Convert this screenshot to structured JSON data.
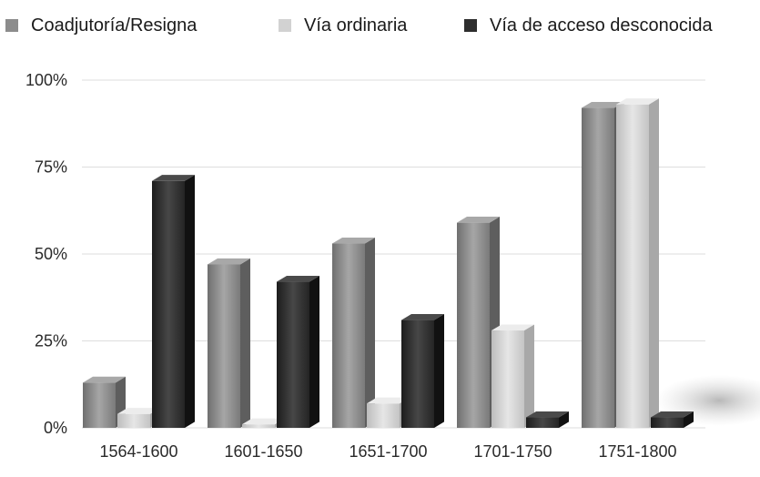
{
  "chart_data": {
    "type": "bar",
    "title": "",
    "xlabel": "",
    "ylabel": "",
    "categories": [
      "1564-1600",
      "1601-1650",
      "1651-1700",
      "1701-1750",
      "1751-1800"
    ],
    "series": [
      {
        "name": "Coadjutoría/Resigna",
        "color": "#8c8c8c",
        "values": [
          13,
          47,
          53,
          59,
          92
        ]
      },
      {
        "name": "Vía ordinaria",
        "color": "#d2d2d2",
        "values": [
          4,
          1,
          7,
          28,
          93
        ]
      },
      {
        "name": "Vía de acceso desconocida",
        "color": "#2e2e2e",
        "values": [
          71,
          42,
          31,
          3,
          3
        ]
      }
    ],
    "ylim": [
      0,
      100
    ],
    "yticks": [
      {
        "value": 0,
        "label": "0%"
      },
      {
        "value": 25,
        "label": "25%"
      },
      {
        "value": 50,
        "label": "50%"
      },
      {
        "value": 75,
        "label": "75%"
      },
      {
        "value": 100,
        "label": "100%"
      }
    ],
    "grid": true,
    "legend_position": "top"
  }
}
